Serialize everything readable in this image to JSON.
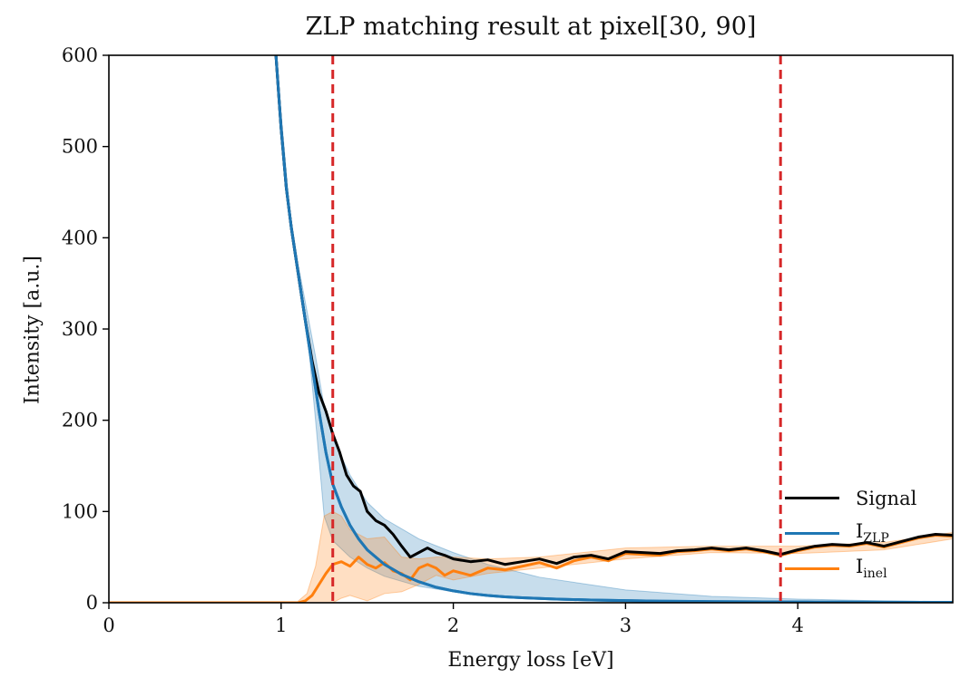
{
  "chart_data": {
    "type": "line",
    "title": "ZLP matching result at pixel[30, 90]",
    "xlabel": "Energy loss [eV]",
    "ylabel": "Intensity [a.u.]",
    "xlim": [
      0,
      4.9
    ],
    "ylim": [
      0,
      600
    ],
    "x_ticks": [
      0,
      1,
      2,
      3,
      4
    ],
    "y_ticks": [
      0,
      100,
      200,
      300,
      400,
      500,
      600
    ],
    "grid": false,
    "legend_position": "lower-right",
    "vlines": [
      {
        "x": 1.3,
        "color": "#d62728",
        "style": "dashed"
      },
      {
        "x": 3.9,
        "color": "#d62728",
        "style": "dashed"
      }
    ],
    "series": [
      {
        "name": "Signal",
        "color": "#000000",
        "x": [
          0.97,
          1.0,
          1.03,
          1.06,
          1.1,
          1.14,
          1.18,
          1.22,
          1.26,
          1.3,
          1.34,
          1.38,
          1.42,
          1.46,
          1.5,
          1.55,
          1.6,
          1.65,
          1.7,
          1.75,
          1.8,
          1.85,
          1.9,
          1.95,
          2.0,
          2.1,
          2.2,
          2.3,
          2.4,
          2.5,
          2.6,
          2.7,
          2.8,
          2.9,
          3.0,
          3.1,
          3.2,
          3.3,
          3.4,
          3.5,
          3.6,
          3.7,
          3.8,
          3.9,
          4.0,
          4.1,
          4.2,
          4.3,
          4.4,
          4.5,
          4.6,
          4.7,
          4.8,
          4.9
        ],
        "y": [
          600,
          520,
          455,
          410,
          360,
          310,
          265,
          230,
          210,
          185,
          165,
          140,
          128,
          122,
          100,
          90,
          85,
          75,
          62,
          50,
          55,
          60,
          55,
          52,
          48,
          45,
          47,
          42,
          45,
          48,
          43,
          50,
          52,
          48,
          56,
          55,
          54,
          57,
          58,
          60,
          58,
          60,
          57,
          53,
          58,
          62,
          64,
          63,
          66,
          62,
          67,
          72,
          75,
          74
        ]
      },
      {
        "name": "I_ZLP",
        "label_main": "I",
        "label_sub": "ZLP",
        "color": "#1f77b4",
        "x": [
          0.97,
          1.0,
          1.03,
          1.06,
          1.1,
          1.14,
          1.18,
          1.22,
          1.26,
          1.3,
          1.35,
          1.4,
          1.45,
          1.5,
          1.6,
          1.7,
          1.8,
          1.9,
          2.0,
          2.1,
          2.2,
          2.3,
          2.4,
          2.6,
          2.8,
          3.0,
          3.2,
          3.5,
          3.8,
          4.1,
          4.5,
          4.9
        ],
        "y": [
          600,
          520,
          455,
          410,
          360,
          310,
          260,
          210,
          165,
          130,
          105,
          85,
          70,
          58,
          42,
          31,
          23,
          17,
          13,
          10,
          8,
          6.5,
          5.5,
          4,
          3,
          2.3,
          1.8,
          1.3,
          1,
          0.8,
          0.6,
          0.5
        ]
      },
      {
        "name": "I_inel",
        "label_main": "I",
        "label_sub": "inel",
        "color": "#ff7f0e",
        "x": [
          0,
          1.1,
          1.14,
          1.18,
          1.22,
          1.26,
          1.3,
          1.35,
          1.4,
          1.45,
          1.5,
          1.55,
          1.6,
          1.65,
          1.7,
          1.75,
          1.8,
          1.85,
          1.9,
          1.95,
          2.0,
          2.1,
          2.2,
          2.3,
          2.4,
          2.5,
          2.6,
          2.7,
          2.8,
          2.9,
          3.0,
          3.1,
          3.2,
          3.3,
          3.4,
          3.5,
          3.6,
          3.7,
          3.8,
          3.9,
          4.0,
          4.1,
          4.2,
          4.3,
          4.4,
          4.5,
          4.6,
          4.7,
          4.8,
          4.9
        ],
        "y": [
          0,
          0,
          2,
          8,
          20,
          32,
          42,
          45,
          40,
          50,
          42,
          38,
          44,
          35,
          32,
          25,
          38,
          42,
          38,
          30,
          35,
          30,
          38,
          36,
          40,
          44,
          38,
          46,
          50,
          46,
          54,
          53,
          52,
          56,
          57,
          59,
          57,
          59,
          56,
          52,
          57,
          61,
          63,
          62,
          65,
          61,
          66,
          71,
          74,
          73
        ]
      }
    ],
    "bands": [
      {
        "series": "I_ZLP",
        "color": "#1f77b4",
        "x": [
          0.97,
          1.05,
          1.1,
          1.15,
          1.2,
          1.25,
          1.3,
          1.4,
          1.5,
          1.6,
          1.8,
          2.0,
          2.2,
          2.5,
          3.0,
          3.5,
          4.0,
          4.5,
          4.9
        ],
        "lower": [
          600,
          420,
          360,
          300,
          200,
          95,
          68,
          50,
          38,
          29,
          18,
          12,
          8,
          5,
          2.5,
          1.5,
          1,
          0.6,
          0.4
        ],
        "upper": [
          600,
          430,
          370,
          320,
          270,
          215,
          180,
          140,
          110,
          92,
          70,
          55,
          42,
          28,
          14,
          7,
          4,
          2,
          1.2
        ]
      },
      {
        "series": "I_inel",
        "color": "#ff7f0e",
        "x": [
          1.1,
          1.15,
          1.2,
          1.25,
          1.3,
          1.35,
          1.4,
          1.5,
          1.6,
          1.7,
          1.8,
          1.9,
          2.0,
          2.2,
          2.5,
          3.0,
          3.5,
          4.0,
          4.5,
          4.9
        ],
        "lower": [
          0,
          0,
          0,
          0,
          0,
          5,
          8,
          2,
          10,
          12,
          20,
          30,
          25,
          32,
          38,
          48,
          55,
          54,
          58,
          70
        ],
        "upper": [
          2,
          10,
          40,
          95,
          100,
          95,
          80,
          70,
          72,
          50,
          48,
          50,
          50,
          48,
          50,
          60,
          62,
          62,
          66,
          77
        ]
      }
    ]
  }
}
